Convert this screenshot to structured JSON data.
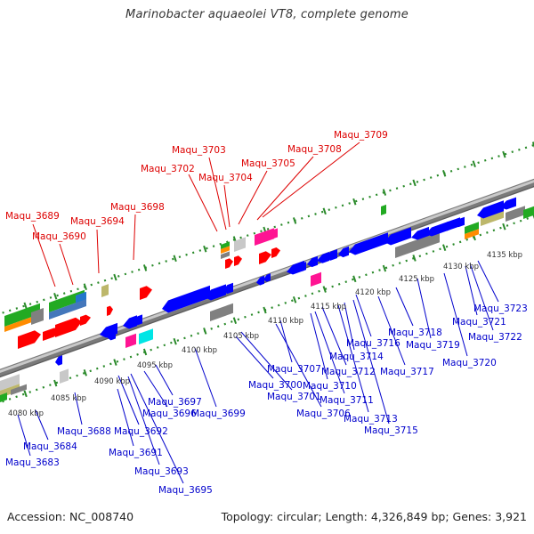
{
  "title": "Marinobacter aquaeolei VT8, complete genome",
  "footer": {
    "accession": "Accession: NC_008740",
    "summary": "Topology: circular; Length: 4,326,849 bp; Genes: 3,921"
  },
  "colors": {
    "forward_label": "#dd0000",
    "reverse_label": "#0000cc",
    "backbone": "#999999",
    "dotted_track": "#228822"
  },
  "scale_ticks": [
    "4080 kbp",
    "4085 kbp",
    "4090 kbp",
    "4095 kbp",
    "4100 kbp",
    "4105 kbp",
    "4110 kbp",
    "4115 kbp",
    "4120 kbp",
    "4125 kbp",
    "4130 kbp",
    "4135 kbp"
  ],
  "forward_genes": [
    "Maqu_3689",
    "Maqu_3690",
    "Maqu_3694",
    "Maqu_3698",
    "Maqu_3702",
    "Maqu_3703",
    "Maqu_3704",
    "Maqu_3705",
    "Maqu_3708",
    "Maqu_3709"
  ],
  "reverse_genes": [
    "Maqu_3683",
    "Maqu_3684",
    "Maqu_3688",
    "Maqu_3691",
    "Maqu_3692",
    "Maqu_3693",
    "Maqu_3695",
    "Maqu_3696",
    "Maqu_3697",
    "Maqu_3699",
    "Maqu_3700",
    "Maqu_3701",
    "Maqu_3706",
    "Maqu_3707",
    "Maqu_3710",
    "Maqu_3711",
    "Maqu_3712",
    "Maqu_3713",
    "Maqu_3714",
    "Maqu_3715",
    "Maqu_3716",
    "Maqu_3717",
    "Maqu_3718",
    "Maqu_3719",
    "Maqu_3720",
    "Maqu_3721",
    "Maqu_3722",
    "Maqu_3723"
  ]
}
